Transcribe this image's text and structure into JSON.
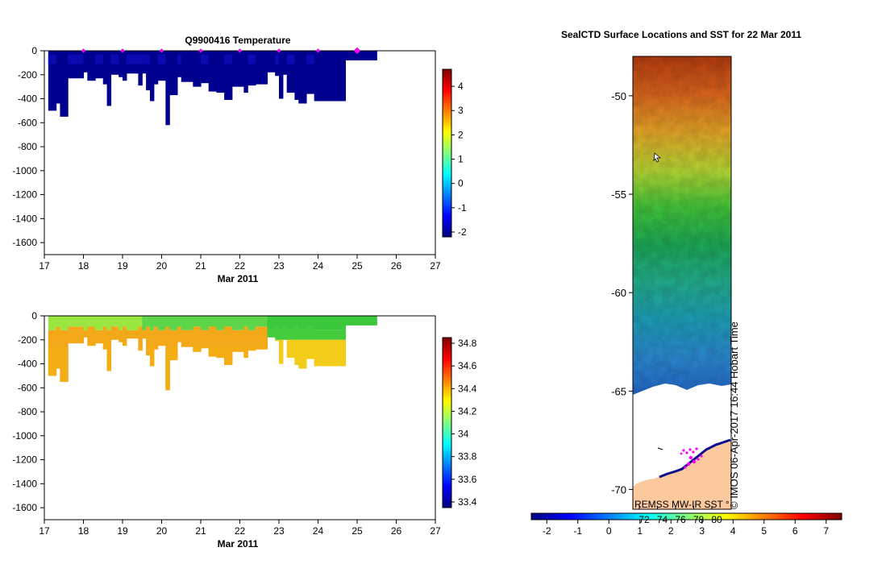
{
  "chart_data": [
    {
      "type": "heatmap",
      "title": "Q9900416  Temperature",
      "xlabel": "Mar 2011",
      "xlim": [
        17,
        27
      ],
      "ylim": [
        -1700,
        0
      ],
      "xticks": [
        17,
        18,
        19,
        20,
        21,
        22,
        23,
        24,
        25,
        26,
        27
      ],
      "yticks": [
        0,
        -200,
        -400,
        -600,
        -800,
        -1000,
        -1200,
        -1400,
        -1600
      ],
      "colorbar": {
        "min": -2.2,
        "max": 4.7,
        "ticks": [
          -2,
          -1,
          0,
          1,
          2,
          3,
          4
        ]
      },
      "profile_marker_days": [
        18,
        19,
        20,
        21,
        22,
        23,
        24,
        25
      ],
      "profiles": [
        {
          "x0": 17.1,
          "x1": 17.3,
          "depth": 500
        },
        {
          "x0": 17.3,
          "x1": 17.4,
          "depth": 440
        },
        {
          "x0": 17.4,
          "x1": 17.6,
          "depth": 550
        },
        {
          "x0": 17.6,
          "x1": 18.0,
          "depth": 230
        },
        {
          "x0": 18.0,
          "x1": 18.1,
          "depth": 180
        },
        {
          "x0": 18.1,
          "x1": 18.3,
          "depth": 250
        },
        {
          "x0": 18.3,
          "x1": 18.5,
          "depth": 230
        },
        {
          "x0": 18.5,
          "x1": 18.6,
          "depth": 280
        },
        {
          "x0": 18.6,
          "x1": 18.7,
          "depth": 460
        },
        {
          "x0": 18.7,
          "x1": 18.9,
          "depth": 200
        },
        {
          "x0": 18.9,
          "x1": 19.0,
          "depth": 220
        },
        {
          "x0": 19.0,
          "x1": 19.1,
          "depth": 250
        },
        {
          "x0": 19.1,
          "x1": 19.4,
          "depth": 190
        },
        {
          "x0": 19.4,
          "x1": 19.5,
          "depth": 290
        },
        {
          "x0": 19.5,
          "x1": 19.6,
          "depth": 190
        },
        {
          "x0": 19.6,
          "x1": 19.7,
          "depth": 330
        },
        {
          "x0": 19.7,
          "x1": 19.8,
          "depth": 420
        },
        {
          "x0": 19.8,
          "x1": 19.9,
          "depth": 280
        },
        {
          "x0": 19.9,
          "x1": 20.1,
          "depth": 250
        },
        {
          "x0": 20.1,
          "x1": 20.2,
          "depth": 620
        },
        {
          "x0": 20.2,
          "x1": 20.4,
          "depth": 370
        },
        {
          "x0": 20.4,
          "x1": 20.5,
          "depth": 220
        },
        {
          "x0": 20.5,
          "x1": 20.8,
          "depth": 260
        },
        {
          "x0": 20.8,
          "x1": 21.0,
          "depth": 300
        },
        {
          "x0": 21.0,
          "x1": 21.2,
          "depth": 270
        },
        {
          "x0": 21.2,
          "x1": 21.4,
          "depth": 340
        },
        {
          "x0": 21.4,
          "x1": 21.6,
          "depth": 350
        },
        {
          "x0": 21.6,
          "x1": 21.8,
          "depth": 410
        },
        {
          "x0": 21.8,
          "x1": 22.1,
          "depth": 300
        },
        {
          "x0": 22.1,
          "x1": 22.2,
          "depth": 350
        },
        {
          "x0": 22.2,
          "x1": 22.4,
          "depth": 290
        },
        {
          "x0": 22.4,
          "x1": 22.7,
          "depth": 280
        },
        {
          "x0": 22.7,
          "x1": 22.9,
          "depth": 180
        },
        {
          "x0": 22.9,
          "x1": 23.0,
          "depth": 210
        },
        {
          "x0": 23.0,
          "x1": 23.1,
          "depth": 400
        },
        {
          "x0": 23.1,
          "x1": 23.2,
          "depth": 200
        },
        {
          "x0": 23.2,
          "x1": 23.4,
          "depth": 350
        },
        {
          "x0": 23.4,
          "x1": 23.5,
          "depth": 410
        },
        {
          "x0": 23.5,
          "x1": 23.7,
          "depth": 440
        },
        {
          "x0": 23.7,
          "x1": 23.9,
          "depth": 360
        },
        {
          "x0": 23.9,
          "x1": 24.7,
          "depth": 420
        },
        {
          "x0": 24.7,
          "x1": 25.5,
          "depth": 80
        }
      ]
    },
    {
      "type": "heatmap",
      "xlabel": "Mar 2011",
      "xlim": [
        17,
        27
      ],
      "ylim": [
        -1700,
        0
      ],
      "xticks": [
        17,
        18,
        19,
        20,
        21,
        22,
        23,
        24,
        25,
        26,
        27
      ],
      "yticks": [
        0,
        -200,
        -400,
        -600,
        -800,
        -1000,
        -1200,
        -1400,
        -1600
      ],
      "colorbar": {
        "min": 33.35,
        "max": 34.85,
        "ticks": [
          33.4,
          33.6,
          33.8,
          34,
          34.2,
          34.4,
          34.6,
          34.8
        ]
      }
    },
    {
      "type": "heatmap",
      "title": "SealCTD Surface Locations and SST for 22 Mar 2011",
      "ylim": [
        -71,
        -48
      ],
      "yticks": [
        -50,
        -55,
        -60,
        -65,
        -70
      ],
      "colorbar": {
        "min": -2.5,
        "max": 7.5,
        "ticks": [
          -2,
          -1,
          0,
          1,
          2,
          3,
          4,
          5,
          6,
          7
        ]
      },
      "fahrenheit_ticks": [
        "72",
        "74",
        "76",
        "78",
        "80"
      ],
      "source_label": "REMSS MW-IR SST",
      "source_suffix": "°",
      "credit": "© IMOS 06-Apr-2017 16:44 Hobart Time"
    }
  ]
}
